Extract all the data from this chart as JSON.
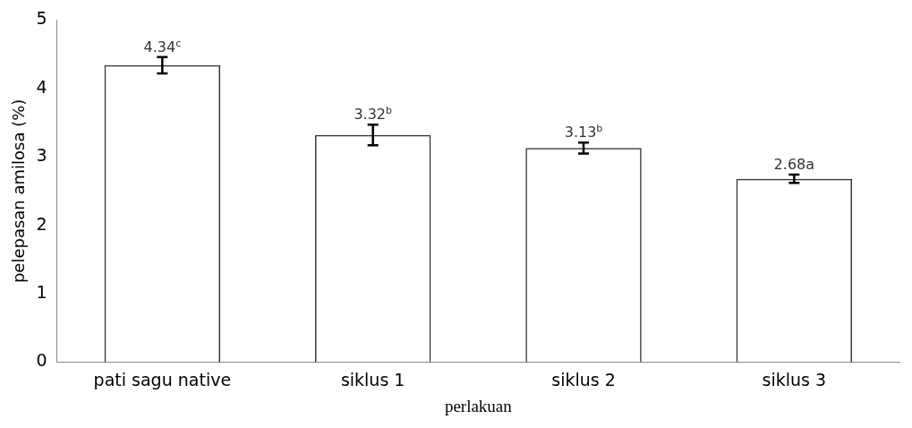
{
  "chart_data": {
    "type": "bar",
    "xlabel": "perlakuan",
    "ylabel": "pelepasan amilosa (%)",
    "categories": [
      "pati sagu native",
      "siklus 1",
      "siklus 2",
      "siklus 3"
    ],
    "values": [
      4.34,
      3.32,
      3.13,
      2.68
    ],
    "errors": [
      0.12,
      0.15,
      0.08,
      0.06
    ],
    "value_labels": [
      "4.34$^{c}$",
      "3.32$^{b}$",
      "3.13$^{b}$",
      "2.68a"
    ],
    "color": "#333333",
    "ylim": [
      0,
      5
    ],
    "yticks": [
      0,
      1,
      2,
      3,
      4,
      5
    ],
    "grid": false,
    "legend": false
  }
}
